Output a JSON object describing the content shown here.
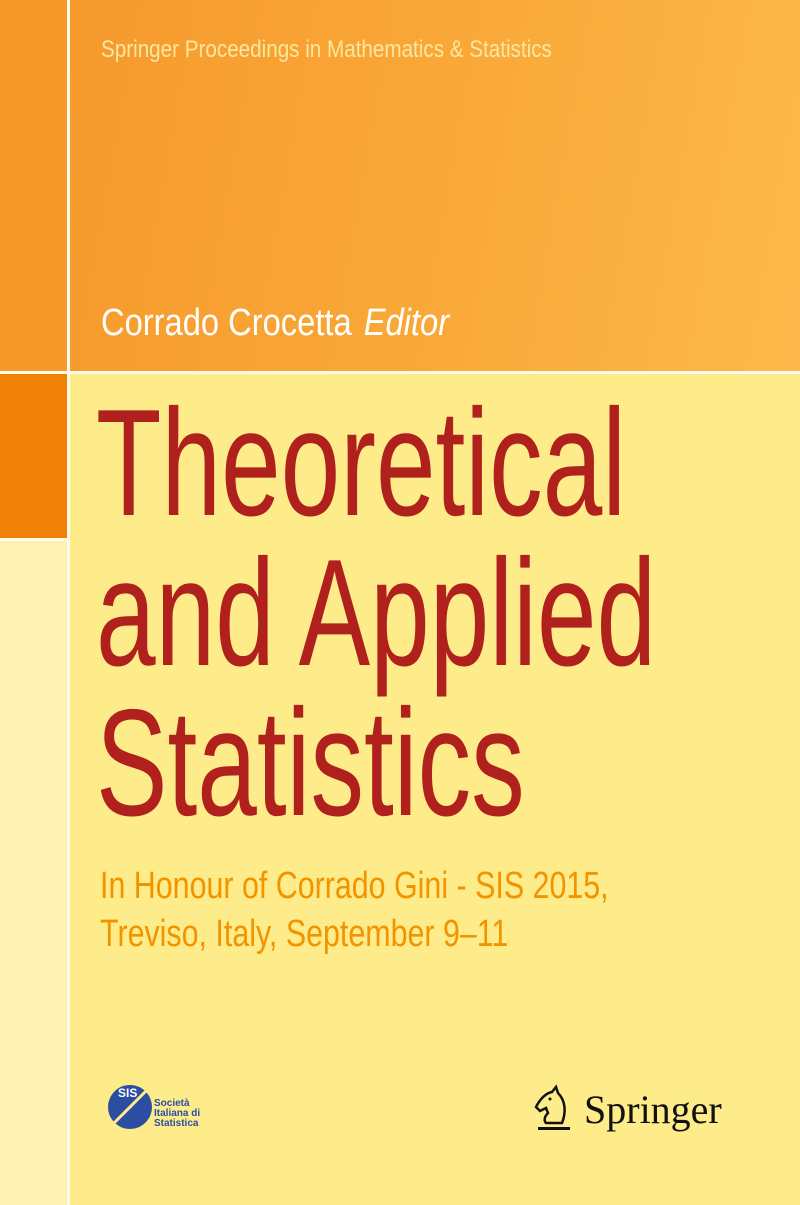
{
  "series": "Springer Proceedings in Mathematics & Statistics",
  "author": {
    "name": "Corrado Crocetta",
    "role": "Editor"
  },
  "title": [
    "Theoretical",
    "and Applied",
    "Statistics"
  ],
  "subtitle": [
    "In Honour of Corrado Gini - SIS 2015,",
    "Treviso, Italy, September 9–11"
  ],
  "sis_logo": {
    "abbr": "SIS",
    "name": [
      "Società",
      "Italiana di",
      "Statistica"
    ]
  },
  "publisher": "Springer",
  "colors": {
    "title": "#b0201c",
    "subtitle": "#f29400",
    "background": "#feeb8a",
    "top_band": "#f9a838",
    "accent_block": "#f08006"
  }
}
